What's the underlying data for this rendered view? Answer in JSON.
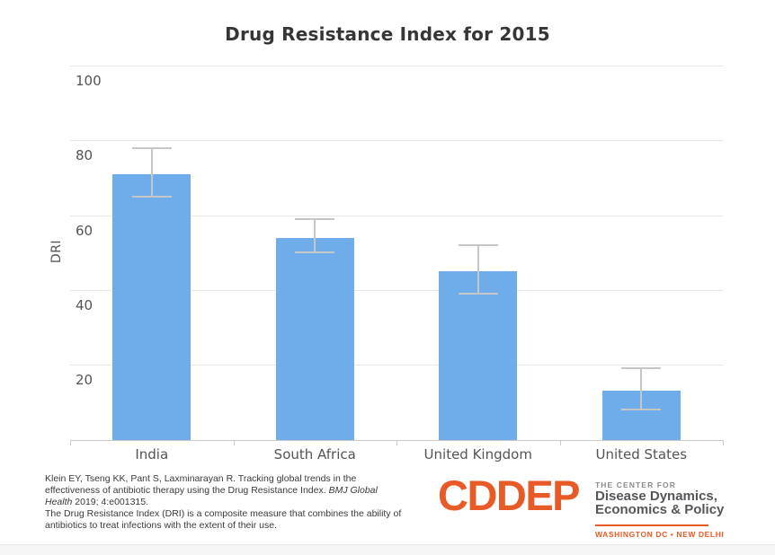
{
  "title": "Drug Resistance Index for 2015",
  "chart_data": {
    "type": "bar",
    "title": "Drug Resistance Index for 2015",
    "categories": [
      "India",
      "South Africa",
      "United Kingdom",
      "United States"
    ],
    "values": [
      71,
      54,
      45,
      13
    ],
    "error_low": [
      65,
      50,
      39,
      8
    ],
    "error_high": [
      78,
      59,
      52,
      19
    ],
    "xlabel": "",
    "ylabel": "DRI",
    "ylim": [
      0,
      100
    ],
    "yticks": [
      20,
      40,
      60,
      80,
      100
    ],
    "grid": true,
    "legend": "none",
    "colors": {
      "bar": "#6eade9",
      "error_bar": "#c6c6c6",
      "gridline": "#e7e7e7",
      "axis_line": "#c9c9c9",
      "label_text": "#545454",
      "title_text": "#363636"
    }
  },
  "footer": {
    "citation_lines": [
      [
        {
          "t": "Klein EY, Tseng KK, Pant S, Laxminarayan R. Tracking global trends in the"
        }
      ],
      [
        {
          "t": "effectiveness of antibiotic therapy using the Drug Resistance Index. "
        },
        {
          "t": "BMJ Global",
          "i": true
        }
      ],
      [
        {
          "t": "Health",
          "i": true
        },
        {
          "t": " 2019; 4:e001315."
        }
      ],
      [
        {
          "t": "The Drug Resistance Index (DRI) is a composite measure that combines the ability of"
        }
      ],
      [
        {
          "t": "antibiotics to treat infections with the extent of their use."
        }
      ]
    ]
  },
  "logo": {
    "wordmark": "CDDEP",
    "tagline_small": "THE CENTER FOR",
    "tagline_line1": "Disease Dynamics,",
    "tagline_line2": "Economics & Policy",
    "locations": "WASHINGTON DC • NEW DELHI",
    "orange": "#e85b27",
    "gray": "#54565a"
  }
}
